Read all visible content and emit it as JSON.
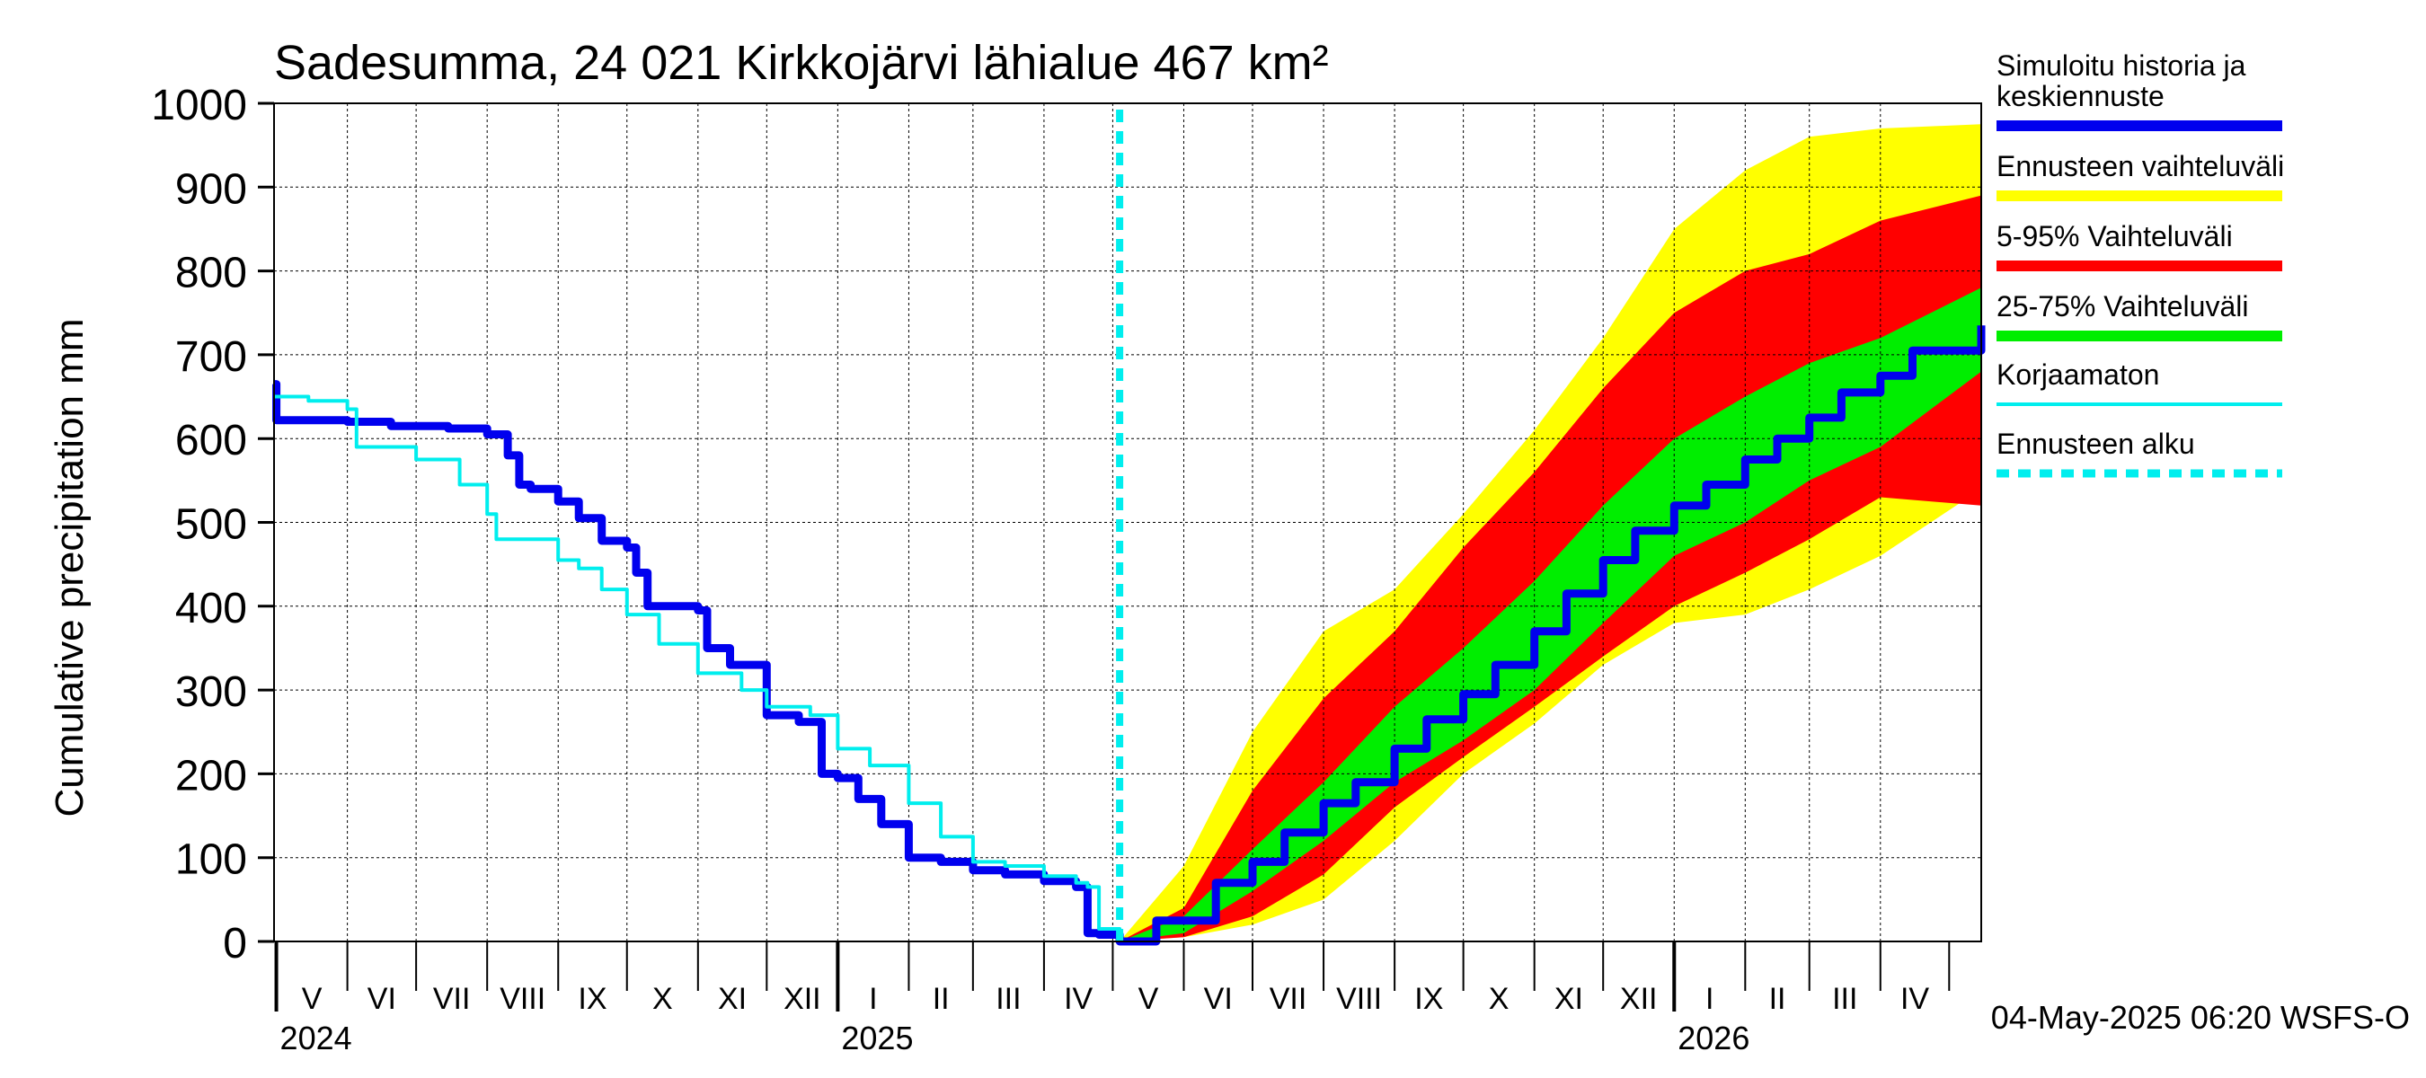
{
  "chart_data": {
    "type": "area",
    "title": "Sadesumma, 24 021 Kirkkojärvi lähialue 467 km²",
    "ylabel": "Cumulative precipitation   mm",
    "xlabel": "",
    "ylim": [
      0,
      1000
    ],
    "yticks": [
      0,
      100,
      200,
      300,
      400,
      500,
      600,
      700,
      800,
      900,
      1000
    ],
    "xlim": [
      "2024-04-30",
      "2026-05-15"
    ],
    "forecast_start": "2025-05-04",
    "grid": true,
    "legend_position": "right",
    "months": [
      {
        "label": "V",
        "start": "2024-05-01"
      },
      {
        "label": "VI",
        "start": "2024-06-01"
      },
      {
        "label": "VII",
        "start": "2024-07-01"
      },
      {
        "label": "VIII",
        "start": "2024-08-01"
      },
      {
        "label": "IX",
        "start": "2024-09-01"
      },
      {
        "label": "X",
        "start": "2024-10-01"
      },
      {
        "label": "XI",
        "start": "2024-11-01"
      },
      {
        "label": "XII",
        "start": "2024-12-01"
      },
      {
        "label": "I",
        "start": "2025-01-01"
      },
      {
        "label": "II",
        "start": "2025-02-01"
      },
      {
        "label": "III",
        "start": "2025-03-01"
      },
      {
        "label": "IV",
        "start": "2025-04-01"
      },
      {
        "label": "V",
        "start": "2025-05-01"
      },
      {
        "label": "VI",
        "start": "2025-06-01"
      },
      {
        "label": "VII",
        "start": "2025-07-01"
      },
      {
        "label": "VIII",
        "start": "2025-08-01"
      },
      {
        "label": "IX",
        "start": "2025-09-01"
      },
      {
        "label": "X",
        "start": "2025-10-01"
      },
      {
        "label": "XI",
        "start": "2025-11-01"
      },
      {
        "label": "XII",
        "start": "2025-12-01"
      },
      {
        "label": "I",
        "start": "2026-01-01"
      },
      {
        "label": "II",
        "start": "2026-02-01"
      },
      {
        "label": "III",
        "start": "2026-03-01"
      },
      {
        "label": "IV",
        "start": "2026-04-01"
      }
    ],
    "month_end": "2026-05-01",
    "years": [
      {
        "label": "2024",
        "date": "2024-05-01"
      },
      {
        "label": "2025",
        "date": "2025-01-01"
      },
      {
        "label": "2026",
        "date": "2026-01-01"
      }
    ],
    "series": [
      {
        "name": "Simuloitu historia ja keskiennuste",
        "color": "#0000ee",
        "x": [
          "2024-04-30",
          "2024-05-01",
          "2024-06-01",
          "2024-06-20",
          "2024-07-15",
          "2024-08-01",
          "2024-08-10",
          "2024-08-15",
          "2024-08-20",
          "2024-09-01",
          "2024-09-10",
          "2024-09-20",
          "2024-10-01",
          "2024-10-05",
          "2024-10-10",
          "2024-11-01",
          "2024-11-05",
          "2024-11-15",
          "2024-12-01",
          "2024-12-15",
          "2024-12-25",
          "2025-01-01",
          "2025-01-10",
          "2025-01-20",
          "2025-02-01",
          "2025-02-15",
          "2025-03-01",
          "2025-03-15",
          "2025-04-01",
          "2025-04-15",
          "2025-04-20",
          "2025-04-25",
          "2025-05-04",
          "2025-05-20",
          "2025-06-15",
          "2025-07-01",
          "2025-07-15",
          "2025-08-01",
          "2025-08-15",
          "2025-09-01",
          "2025-09-15",
          "2025-10-01",
          "2025-10-15",
          "2025-11-01",
          "2025-11-15",
          "2025-12-01",
          "2025-12-15",
          "2026-01-01",
          "2026-01-15",
          "2026-02-01",
          "2026-02-15",
          "2026-03-01",
          "2026-03-15",
          "2026-04-01",
          "2026-04-15",
          "2026-05-15"
        ],
        "y": [
          665,
          622,
          620,
          615,
          612,
          605,
          580,
          545,
          540,
          525,
          505,
          478,
          470,
          440,
          400,
          395,
          350,
          330,
          270,
          262,
          200,
          195,
          170,
          140,
          100,
          95,
          85,
          80,
          72,
          65,
          10,
          8,
          0,
          25,
          70,
          95,
          130,
          165,
          190,
          230,
          265,
          295,
          330,
          370,
          415,
          455,
          490,
          520,
          545,
          575,
          600,
          625,
          655,
          675,
          705,
          735
        ]
      },
      {
        "name": "Korjaamaton",
        "color": "#00eeee",
        "x": [
          "2024-04-30",
          "2024-05-01",
          "2024-05-15",
          "2024-06-01",
          "2024-06-05",
          "2024-07-01",
          "2024-07-20",
          "2024-08-01",
          "2024-08-05",
          "2024-09-01",
          "2024-09-10",
          "2024-09-20",
          "2024-10-01",
          "2024-10-15",
          "2024-11-01",
          "2024-11-20",
          "2024-12-01",
          "2024-12-20",
          "2025-01-01",
          "2025-01-15",
          "2025-02-01",
          "2025-02-15",
          "2025-03-01",
          "2025-03-15",
          "2025-04-01",
          "2025-04-15",
          "2025-04-20",
          "2025-04-25",
          "2025-05-04"
        ],
        "y": [
          650,
          650,
          645,
          635,
          590,
          575,
          545,
          510,
          480,
          455,
          445,
          420,
          390,
          355,
          320,
          300,
          280,
          270,
          230,
          210,
          165,
          125,
          95,
          90,
          78,
          70,
          65,
          15,
          10
        ]
      },
      {
        "name": "Ennusteen alku",
        "color": "#00eeee",
        "x": [
          "2025-05-04",
          "2025-05-04"
        ],
        "y": [
          0,
          995
        ]
      }
    ],
    "bands": [
      {
        "name": "Ennusteen vaihteluväli",
        "color": "#ffff00",
        "x": [
          "2025-05-04",
          "2025-06-01",
          "2025-07-01",
          "2025-08-01",
          "2025-09-01",
          "2025-10-01",
          "2025-11-01",
          "2025-12-01",
          "2026-01-01",
          "2026-02-01",
          "2026-03-01",
          "2026-04-01",
          "2026-05-15"
        ],
        "low": [
          0,
          5,
          20,
          50,
          120,
          200,
          260,
          330,
          380,
          390,
          420,
          460,
          540
        ],
        "high": [
          0,
          90,
          250,
          370,
          420,
          510,
          610,
          720,
          850,
          920,
          960,
          970,
          975
        ]
      },
      {
        "name": "5-95% Vaihteluväli",
        "color": "#ff0000",
        "x": [
          "2025-05-04",
          "2025-06-01",
          "2025-07-01",
          "2025-08-01",
          "2025-09-01",
          "2025-10-01",
          "2025-11-01",
          "2025-12-01",
          "2026-01-01",
          "2026-02-01",
          "2026-03-01",
          "2026-04-01",
          "2026-05-15"
        ],
        "low": [
          0,
          5,
          30,
          80,
          160,
          220,
          280,
          340,
          400,
          440,
          480,
          530,
          520
        ],
        "high": [
          0,
          40,
          180,
          290,
          370,
          470,
          560,
          660,
          750,
          800,
          820,
          860,
          890
        ]
      },
      {
        "name": "25-75% Vaihteluväli",
        "color": "#00ee00",
        "x": [
          "2025-05-04",
          "2025-06-01",
          "2025-07-01",
          "2025-08-01",
          "2025-09-01",
          "2025-10-01",
          "2025-11-01",
          "2025-12-01",
          "2026-01-01",
          "2026-02-01",
          "2026-03-01",
          "2026-04-01",
          "2026-05-15"
        ],
        "low": [
          0,
          10,
          60,
          120,
          190,
          240,
          300,
          380,
          460,
          500,
          550,
          590,
          680
        ],
        "high": [
          0,
          30,
          110,
          190,
          280,
          350,
          430,
          520,
          600,
          650,
          690,
          720,
          780
        ]
      }
    ]
  },
  "legend": [
    {
      "label": "Simuloitu historia ja keskiennuste",
      "color": "#0000ee",
      "style": "solid"
    },
    {
      "label": "Ennusteen vaihteluväli",
      "color": "#ffff00",
      "style": "solid"
    },
    {
      "label": "5-95% Vaihteluväli",
      "color": "#ff0000",
      "style": "solid"
    },
    {
      "label": "25-75% Vaihteluväli",
      "color": "#00ee00",
      "style": "solid"
    },
    {
      "label": "Korjaamaton",
      "color": "#00eeee",
      "style": "thin"
    },
    {
      "label": "Ennusteen alku",
      "color": "#00eeee",
      "style": "dashed"
    }
  ],
  "footer": {
    "timestamp": "04-May-2025 06:20 WSFS-O"
  }
}
